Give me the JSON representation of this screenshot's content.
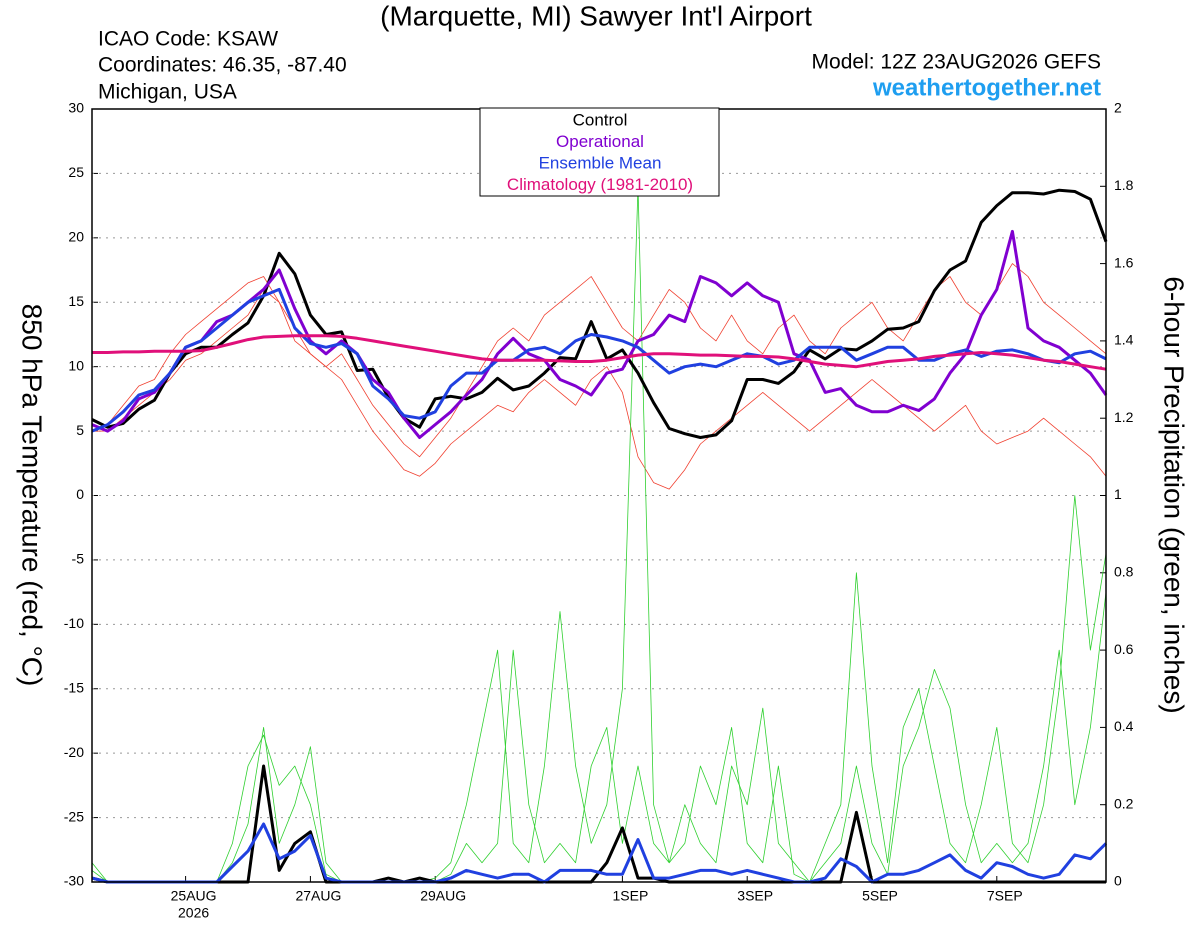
{
  "chart_data": {
    "type": "line",
    "title": "(Marquette, MI) Sawyer Int'l Airport",
    "icao": "ICAO Code: KSAW",
    "coordinates": "Coordinates: 46.35, -87.40",
    "location": "Michigan, USA",
    "model": "Model: 12Z 23AUG2026 GEFS",
    "site": "weathertogether.net",
    "ylabel": "850 hPa Temperature (red, °C)",
    "y2label": "6-hour Precipitation (green, inches)",
    "x_year_label": "2026",
    "categories": [
      null,
      null,
      null,
      null,
      null,
      null,
      "25AUG",
      null,
      null,
      null,
      null,
      null,
      null,
      null,
      "27AUG",
      null,
      null,
      null,
      null,
      null,
      null,
      null,
      "29AUG",
      null,
      null,
      null,
      null,
      null,
      null,
      null,
      null,
      null,
      null,
      null,
      "1SEP",
      null,
      null,
      null,
      null,
      null,
      null,
      null,
      "3SEP",
      null,
      null,
      null,
      null,
      null,
      null,
      null,
      "5SEP",
      null,
      null,
      null,
      null,
      null,
      null,
      null,
      "7SEP",
      null,
      null,
      null,
      null,
      null,
      null,
      null
    ],
    "ylim": [
      -30,
      30
    ],
    "yticks": [
      -30,
      -25,
      -20,
      -15,
      -10,
      -5,
      0,
      5,
      10,
      15,
      20,
      25,
      30
    ],
    "y2lim": [
      0,
      2
    ],
    "y2ticks": [
      0,
      0.2,
      0.4,
      0.6,
      0.8,
      1,
      1.2,
      1.4,
      1.6,
      1.8,
      2
    ],
    "grid": true,
    "members": [
      {
        "color": "#f04030",
        "values": [
          5,
          5.5,
          7,
          8.5,
          9,
          11,
          12.5,
          13.5,
          14.5,
          15.5,
          16.5,
          17,
          15,
          12,
          11,
          10,
          11,
          9,
          7,
          5.5,
          4,
          3,
          4.5,
          6,
          8,
          10,
          12,
          13,
          12,
          14,
          15,
          16,
          17,
          15,
          13,
          12,
          14,
          16,
          15,
          13,
          12,
          14,
          12,
          11,
          13,
          14,
          12,
          11,
          13,
          14,
          15,
          13,
          12,
          14,
          16,
          17,
          15,
          14,
          16,
          18,
          17,
          15,
          14,
          13,
          12,
          11
        ]
      },
      {
        "color": "#f04030",
        "values": [
          5,
          5,
          6,
          7,
          8,
          9,
          10.5,
          11,
          12,
          13,
          14,
          16,
          15,
          13,
          11,
          10,
          9,
          7,
          5,
          3.5,
          2,
          1.5,
          2.5,
          4,
          5,
          6,
          7,
          6.5,
          8,
          9,
          8,
          7,
          9,
          10,
          8,
          3,
          1,
          0.5,
          2,
          4,
          5,
          6,
          7,
          8,
          7,
          6,
          5,
          6,
          7,
          8,
          9,
          8,
          7,
          6,
          5,
          6,
          7,
          5,
          4,
          4.5,
          5,
          6,
          5,
          4,
          3,
          1.5
        ]
      },
      {
        "color": "#30d030",
        "axis": "y2",
        "values": [
          0.03,
          0,
          0,
          0,
          0,
          0,
          0,
          0,
          0,
          0.05,
          0.15,
          0.4,
          0.1,
          0.2,
          0.35,
          0.05,
          0,
          0,
          0,
          0,
          0,
          0,
          0.01,
          0.05,
          0.2,
          0.4,
          0.6,
          0.1,
          0.05,
          0.3,
          0.7,
          0.3,
          0.1,
          0.2,
          0.5,
          1.8,
          0.2,
          0.05,
          0.1,
          0.3,
          0.2,
          0.4,
          0.1,
          0.05,
          0.3,
          0.02,
          0,
          0.1,
          0.2,
          0.8,
          0.3,
          0.05,
          0.4,
          0.5,
          0.3,
          0.1,
          0.05,
          0.2,
          0.4,
          0.1,
          0.05,
          0.2,
          0.5,
          1.0,
          0.6,
          0.85
        ]
      },
      {
        "color": "#30d030",
        "axis": "y2",
        "values": [
          0.05,
          0,
          0,
          0,
          0,
          0,
          0,
          0,
          0,
          0.1,
          0.3,
          0.38,
          0.25,
          0.3,
          0.2,
          0.02,
          0,
          0,
          0,
          0.01,
          0,
          0,
          0,
          0.02,
          0.1,
          0.05,
          0.1,
          0.6,
          0.2,
          0.05,
          0.1,
          0.05,
          0.3,
          0.4,
          0.1,
          0.3,
          0.1,
          0.05,
          0.2,
          0.1,
          0.05,
          0.3,
          0.2,
          0.45,
          0.1,
          0.05,
          0,
          0.05,
          0.1,
          0.3,
          0.1,
          0.02,
          0.3,
          0.4,
          0.55,
          0.45,
          0.2,
          0.05,
          0.1,
          0.05,
          0.1,
          0.3,
          0.6,
          0.2,
          0.4,
          0.75
        ]
      }
    ],
    "series": [
      {
        "name": "Control",
        "color": "#000000",
        "values": [
          5.9,
          5.3,
          5.6,
          6.7,
          7.4,
          9.5,
          11.0,
          11.5,
          11.5,
          12.5,
          13.4,
          15.5,
          18.8,
          17.2,
          14.0,
          12.5,
          12.7,
          9.7,
          9.8,
          7.6,
          6.0,
          5.3,
          7.5,
          7.7,
          7.5,
          8.0,
          9.1,
          8.2,
          8.5,
          9.5,
          10.7,
          10.6,
          13.5,
          10.6,
          11.3,
          9.5,
          7.2,
          5.2,
          4.8,
          4.5,
          4.7,
          5.8,
          9.0,
          9.0,
          8.7,
          9.6,
          11.3,
          10.6,
          11.4,
          11.3,
          12.0,
          12.9,
          13.0,
          13.5,
          15.9,
          17.5,
          18.2,
          21.2,
          22.5,
          23.5,
          23.5,
          23.4,
          23.7,
          23.6,
          23.0,
          19.7
        ]
      },
      {
        "name": "Operational",
        "color": "#8000d0",
        "values": [
          5.5,
          5.0,
          5.8,
          7.5,
          8.0,
          9.5,
          11.5,
          12.0,
          13.5,
          14.0,
          15.0,
          16.0,
          17.5,
          14.5,
          12.0,
          11.0,
          12.0,
          11.0,
          9.0,
          8.0,
          6.0,
          4.5,
          5.5,
          6.5,
          7.8,
          9.0,
          11.0,
          12.2,
          11.0,
          10.5,
          9.0,
          8.5,
          7.8,
          9.5,
          9.8,
          12.0,
          12.5,
          14.0,
          13.5,
          17.0,
          16.5,
          15.5,
          16.5,
          15.5,
          15.0,
          11.0,
          10.5,
          8.0,
          8.3,
          7.0,
          6.5,
          6.5,
          7.0,
          6.6,
          7.5,
          9.5,
          11.0,
          14.0,
          16.0,
          20.5,
          13.0,
          12.0,
          11.5,
          10.5,
          9.5,
          7.8
        ]
      },
      {
        "name": "Ensemble Mean",
        "color": "#2040e0",
        "values": [
          5,
          5.5,
          6.5,
          7.8,
          8.2,
          9.5,
          11.5,
          12,
          13,
          14,
          15,
          15.5,
          16,
          13,
          11.8,
          11.5,
          11.8,
          11,
          8.5,
          7.5,
          6.2,
          6,
          6.5,
          8.5,
          9.5,
          9.5,
          10.5,
          10.5,
          11.3,
          11.5,
          11,
          12,
          12.5,
          12.3,
          12,
          11.5,
          10.5,
          9.5,
          10,
          10.2,
          10,
          10.5,
          11,
          10.8,
          10.2,
          10.5,
          11.5,
          11.5,
          11.5,
          10.5,
          11,
          11.5,
          11.5,
          10.5,
          10.5,
          11,
          11.3,
          10.8,
          11.2,
          11.3,
          11,
          10.5,
          10.3,
          11,
          11.2,
          10.6
        ]
      },
      {
        "name": "Climatology (1981-2010)",
        "color": "#e0107a",
        "values": [
          11.1,
          11.1,
          11.15,
          11.15,
          11.2,
          11.2,
          11.2,
          11.25,
          11.5,
          11.8,
          12.1,
          12.3,
          12.35,
          12.4,
          12.4,
          12.4,
          12.35,
          12.2,
          12.0,
          11.8,
          11.6,
          11.4,
          11.2,
          11.0,
          10.8,
          10.6,
          10.5,
          10.5,
          10.5,
          10.5,
          10.45,
          10.4,
          10.4,
          10.5,
          10.7,
          10.9,
          11.0,
          11.0,
          10.95,
          10.9,
          10.9,
          10.85,
          10.8,
          10.8,
          10.75,
          10.6,
          10.4,
          10.2,
          10.1,
          10.0,
          10.2,
          10.4,
          10.5,
          10.6,
          10.8,
          10.9,
          11.0,
          11.1,
          11.0,
          10.9,
          10.7,
          10.5,
          10.4,
          10.2,
          10.0,
          9.8
        ]
      },
      {
        "color": "#000000",
        "axis": "y2",
        "values": [
          0.01,
          0,
          0,
          0,
          0,
          0,
          0,
          0,
          0,
          0,
          0,
          0.3,
          0.03,
          0.1,
          0.13,
          0,
          0,
          0,
          0,
          0.01,
          0,
          0.01,
          0,
          0,
          0,
          0,
          0,
          0,
          0,
          0,
          0,
          0,
          0,
          0.05,
          0.14,
          0.01,
          0.01,
          0,
          0,
          0,
          0,
          0,
          0,
          0,
          0,
          0,
          0,
          0,
          0,
          0.18,
          0,
          0,
          0,
          0,
          0,
          0,
          0,
          0,
          0,
          0,
          0,
          0,
          0,
          0,
          0,
          0
        ]
      },
      {
        "color": "#2040e0",
        "axis": "y2",
        "values": [
          0.01,
          0,
          0,
          0,
          0,
          0,
          0,
          0,
          0,
          0.04,
          0.08,
          0.15,
          0.06,
          0.08,
          0.12,
          0.01,
          0,
          0,
          0,
          0,
          0,
          0,
          0,
          0.01,
          0.03,
          0.02,
          0.01,
          0.02,
          0.02,
          0,
          0.03,
          0.03,
          0.03,
          0.02,
          0.02,
          0.11,
          0.01,
          0.01,
          0.02,
          0.03,
          0.03,
          0.02,
          0.03,
          0.02,
          0.01,
          0,
          0,
          0.01,
          0.06,
          0.04,
          0,
          0.02,
          0.02,
          0.03,
          0.05,
          0.07,
          0.03,
          0.01,
          0.05,
          0.04,
          0.02,
          0.01,
          0.02,
          0.07,
          0.06,
          0.1
        ]
      }
    ]
  }
}
